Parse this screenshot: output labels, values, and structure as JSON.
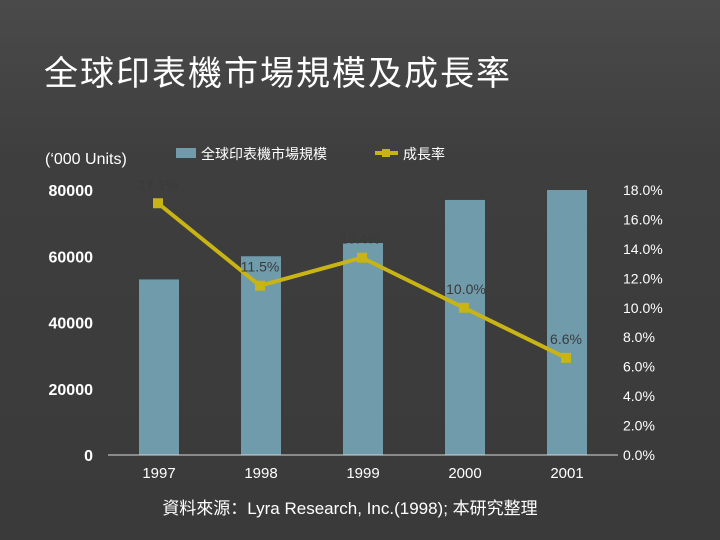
{
  "slide": {
    "title": "全球印表機市場規模及成長率",
    "units_note": "(‘000 Units)",
    "source": "資料來源：Lyra Research, Inc.(1998); 本研究整理"
  },
  "chart_data": {
    "type": "bar",
    "title": "",
    "categories": [
      "1997",
      "1998",
      "1999",
      "2000",
      "2001"
    ],
    "series": [
      {
        "name": "全球印表機市場規模",
        "type": "bar",
        "axis": "left",
        "color": "#6f9bab",
        "values": [
          53000,
          60000,
          64000,
          77000,
          80000
        ]
      },
      {
        "name": "成長率",
        "type": "line",
        "axis": "right",
        "color": "#c8b414",
        "values": [
          17.1,
          11.5,
          13.4,
          10.0,
          6.6
        ],
        "labels": [
          "17.1%",
          "11.5%",
          "13.4%",
          "10.0%",
          "6.6%"
        ]
      }
    ],
    "y_left": {
      "min": 0,
      "max": 80000,
      "ticks": [
        "0",
        "20000",
        "40000",
        "60000",
        "80000"
      ]
    },
    "y_right": {
      "min": 0,
      "max": 18,
      "ticks": [
        "0.0%",
        "2.0%",
        "4.0%",
        "6.0%",
        "8.0%",
        "10.0%",
        "12.0%",
        "14.0%",
        "16.0%",
        "18.0%"
      ]
    },
    "grid": false,
    "legend_position": "top"
  },
  "colors": {
    "text": "#ffffff",
    "label_text": "#3a3a3a",
    "axis_line": "#d9d9d9"
  }
}
